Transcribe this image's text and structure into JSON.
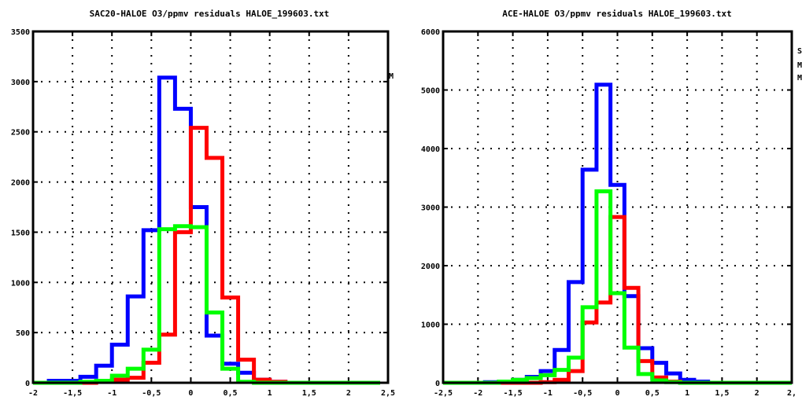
{
  "colors": {
    "series_1": "#ff0000",
    "series_2": "#0000ff",
    "series_3": "#00ff00",
    "axis": "#000000",
    "grid": "#000000"
  },
  "chart_data": [
    {
      "type": "line",
      "step": true,
      "title": "SAC20-HALOE O3/ppmv residuals HALOE_199603.txt",
      "xlim": [
        -2,
        2.5
      ],
      "ylim": [
        0,
        3500
      ],
      "x_ticks": [
        "-2",
        "-1,5",
        "-1",
        "-0,5",
        "0",
        "0,5",
        "1",
        "1,5",
        "2",
        "2,5"
      ],
      "y_ticks": [
        "0",
        "500",
        "1000",
        "1500",
        "2000",
        "2500",
        "3000",
        "3500"
      ],
      "grid": true,
      "legend": "none",
      "bin_edges": [
        -2.0,
        -1.8,
        -1.6,
        -1.4,
        -1.2,
        -1.0,
        -0.8,
        -0.6,
        -0.4,
        -0.2,
        0.0,
        0.2,
        0.4,
        0.6,
        0.8,
        1.0,
        1.2,
        1.4,
        1.6,
        1.8,
        2.0,
        2.2,
        2.4
      ],
      "series": [
        {
          "color": "#ff0000",
          "values": [
            0,
            0,
            0,
            0,
            10,
            30,
            50,
            200,
            480,
            1500,
            2540,
            2240,
            850,
            230,
            30,
            10,
            0,
            0,
            0,
            0,
            0,
            0
          ]
        },
        {
          "color": "#0000ff",
          "values": [
            0,
            20,
            20,
            60,
            170,
            380,
            860,
            1520,
            3040,
            2730,
            1750,
            470,
            190,
            100,
            30,
            10,
            0,
            0,
            0,
            0,
            0,
            0
          ]
        },
        {
          "color": "#00ff00",
          "values": [
            0,
            0,
            0,
            10,
            20,
            70,
            140,
            330,
            1530,
            1560,
            1550,
            700,
            140,
            10,
            0,
            0,
            0,
            0,
            0,
            0,
            0,
            0
          ]
        }
      ]
    },
    {
      "type": "line",
      "step": true,
      "title": "ACE-HALOE O3/ppmv residuals HALOE_199603.txt",
      "xlim": [
        -2.5,
        2.5
      ],
      "ylim": [
        0,
        6000
      ],
      "x_ticks": [
        "-2,5",
        "-2",
        "-1,5",
        "-1",
        "-0,5",
        "0",
        "0,5",
        "1",
        "1,5",
        "2",
        "2,"
      ],
      "y_ticks": [
        "0",
        "1000",
        "2000",
        "3000",
        "4000",
        "5000",
        "6000"
      ],
      "grid": true,
      "legend": "none",
      "bin_edges": [
        -2.5,
        -2.3,
        -2.1,
        -1.9,
        -1.7,
        -1.5,
        -1.3,
        -1.1,
        -0.9,
        -0.7,
        -0.5,
        -0.3,
        -0.1,
        0.1,
        0.3,
        0.5,
        0.7,
        0.9,
        1.1,
        1.3,
        1.5,
        1.7,
        1.9,
        2.1,
        2.3,
        2.5
      ],
      "series": [
        {
          "color": "#ff0000",
          "values": [
            0,
            0,
            0,
            0,
            0,
            0,
            0,
            10,
            50,
            200,
            1030,
            1370,
            2830,
            1620,
            370,
            90,
            20,
            0,
            0,
            0,
            0,
            0,
            0,
            0,
            0
          ]
        },
        {
          "color": "#0000ff",
          "values": [
            0,
            0,
            0,
            10,
            20,
            50,
            100,
            200,
            560,
            1720,
            3640,
            5090,
            3380,
            1480,
            590,
            340,
            160,
            50,
            20,
            0,
            0,
            0,
            0,
            0,
            0
          ]
        },
        {
          "color": "#00ff00",
          "values": [
            0,
            0,
            0,
            0,
            20,
            50,
            80,
            130,
            220,
            430,
            1290,
            3270,
            1530,
            600,
            150,
            40,
            10,
            0,
            0,
            0,
            0,
            0,
            0,
            0,
            0
          ]
        }
      ]
    }
  ]
}
